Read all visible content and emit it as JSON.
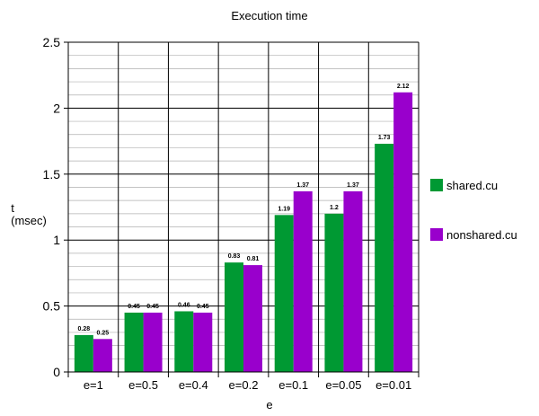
{
  "chart_data": {
    "type": "bar",
    "title": "Execution time",
    "xlabel": "e",
    "ylabel_line1": "t",
    "ylabel_line2": "(msec)",
    "categories": [
      "e=1",
      "e=0.5",
      "e=0.4",
      "e=0.2",
      "e=0.1",
      "e=0.05",
      "e=0.01"
    ],
    "series": [
      {
        "name": "shared.cu",
        "color": "#009933",
        "values": [
          0.28,
          0.45,
          0.46,
          0.83,
          1.19,
          1.2,
          1.73
        ]
      },
      {
        "name": "nonshared.cu",
        "color": "#9900cc",
        "values": [
          0.25,
          0.45,
          0.45,
          0.81,
          1.37,
          1.37,
          2.12
        ]
      }
    ],
    "ylim": [
      0,
      2.5
    ],
    "yticks": [
      "0",
      "0.5",
      "1",
      "1.5",
      "2",
      "2.5"
    ],
    "grid": true,
    "legend_position": "right"
  }
}
